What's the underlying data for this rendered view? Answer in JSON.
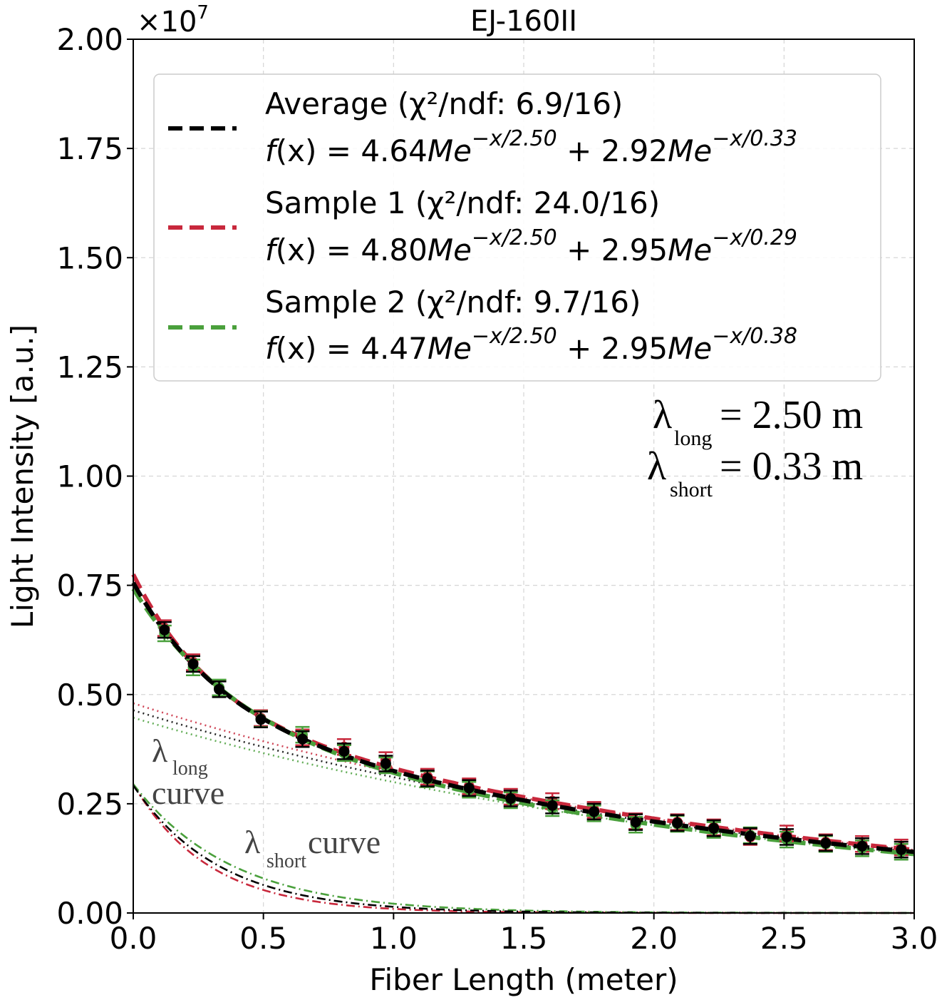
{
  "chart_data": {
    "type": "line",
    "title": "EJ-160II",
    "xlabel": "Fiber Length (meter)",
    "ylabel": "Light Intensity [a.u.]",
    "y_multiplier": "×10",
    "y_exponent": "7",
    "xlim": [
      0.0,
      3.0
    ],
    "ylim": [
      0.0,
      2.0
    ],
    "x_ticks": [
      "0.0",
      "0.5",
      "1.0",
      "1.5",
      "2.0",
      "2.5",
      "3.0"
    ],
    "y_ticks": [
      "0.00",
      "0.25",
      "0.50",
      "0.75",
      "1.00",
      "1.25",
      "1.50",
      "1.75",
      "2.00"
    ],
    "grid": true,
    "legend_position": "top",
    "series": [
      {
        "name": "Average",
        "color": "#000000",
        "label": "Average (χ²/ndf: 6.9/16)",
        "formula_head": "f",
        "formula_mid": "(x) = 4.64",
        "formula_me1": "Me",
        "formula_exp1": "−x/2.50",
        "formula_plus": " + 2.92",
        "formula_me2": "Me",
        "formula_exp2": "−x/0.33",
        "A_long": 0.464,
        "lambda_long": 2.5,
        "A_short": 0.292,
        "lambda_short": 0.33
      },
      {
        "name": "Sample 1",
        "color": "#c8283c",
        "label": "Sample 1 (χ²/ndf: 24.0/16)",
        "formula_head": "f",
        "formula_mid": "(x) = 4.80",
        "formula_me1": "Me",
        "formula_exp1": "−x/2.50",
        "formula_plus": " + 2.95",
        "formula_me2": "Me",
        "formula_exp2": "−x/0.29",
        "A_long": 0.48,
        "lambda_long": 2.5,
        "A_short": 0.295,
        "lambda_short": 0.29
      },
      {
        "name": "Sample 2",
        "color": "#4aa03c",
        "label": "Sample 2 (χ²/ndf: 9.7/16)",
        "formula_head": "f",
        "formula_mid": "(x) = 4.47",
        "formula_me1": "Me",
        "formula_exp1": "−x/2.50",
        "formula_plus": " + 2.95",
        "formula_me2": "Me",
        "formula_exp2": "−x/0.38",
        "A_long": 0.447,
        "lambda_long": 2.5,
        "A_short": 0.295,
        "lambda_short": 0.38
      }
    ],
    "points_x": [
      0.12,
      0.23,
      0.33,
      0.49,
      0.65,
      0.81,
      0.97,
      1.13,
      1.29,
      1.45,
      1.61,
      1.77,
      1.93,
      2.09,
      2.23,
      2.37,
      2.51,
      2.66,
      2.8,
      2.95
    ],
    "points": {
      "Average": [
        0.648,
        0.57,
        0.512,
        0.443,
        0.398,
        0.37,
        0.342,
        0.308,
        0.286,
        0.262,
        0.246,
        0.232,
        0.208,
        0.206,
        0.194,
        0.176,
        0.174,
        0.16,
        0.153,
        0.145
      ],
      "Sample 1": [
        0.652,
        0.574,
        0.515,
        0.446,
        0.402,
        0.38,
        0.35,
        0.312,
        0.29,
        0.266,
        0.256,
        0.236,
        0.21,
        0.208,
        0.196,
        0.174,
        0.182,
        0.162,
        0.158,
        0.15
      ],
      "Sample 2": [
        0.64,
        0.562,
        0.516,
        0.444,
        0.408,
        0.366,
        0.338,
        0.306,
        0.282,
        0.258,
        0.24,
        0.228,
        0.202,
        0.204,
        0.19,
        0.178,
        0.168,
        0.158,
        0.148,
        0.14
      ]
    },
    "error": 0.018,
    "annotations": {
      "lambda_symbol": "λ",
      "lambda_long_sub": "long",
      "lambda_long_value": "= 2.50 m",
      "lambda_short_sub": "short",
      "lambda_short_value": "= 0.33 m",
      "long_curve_label": "curve",
      "short_curve_label": "curve"
    }
  }
}
